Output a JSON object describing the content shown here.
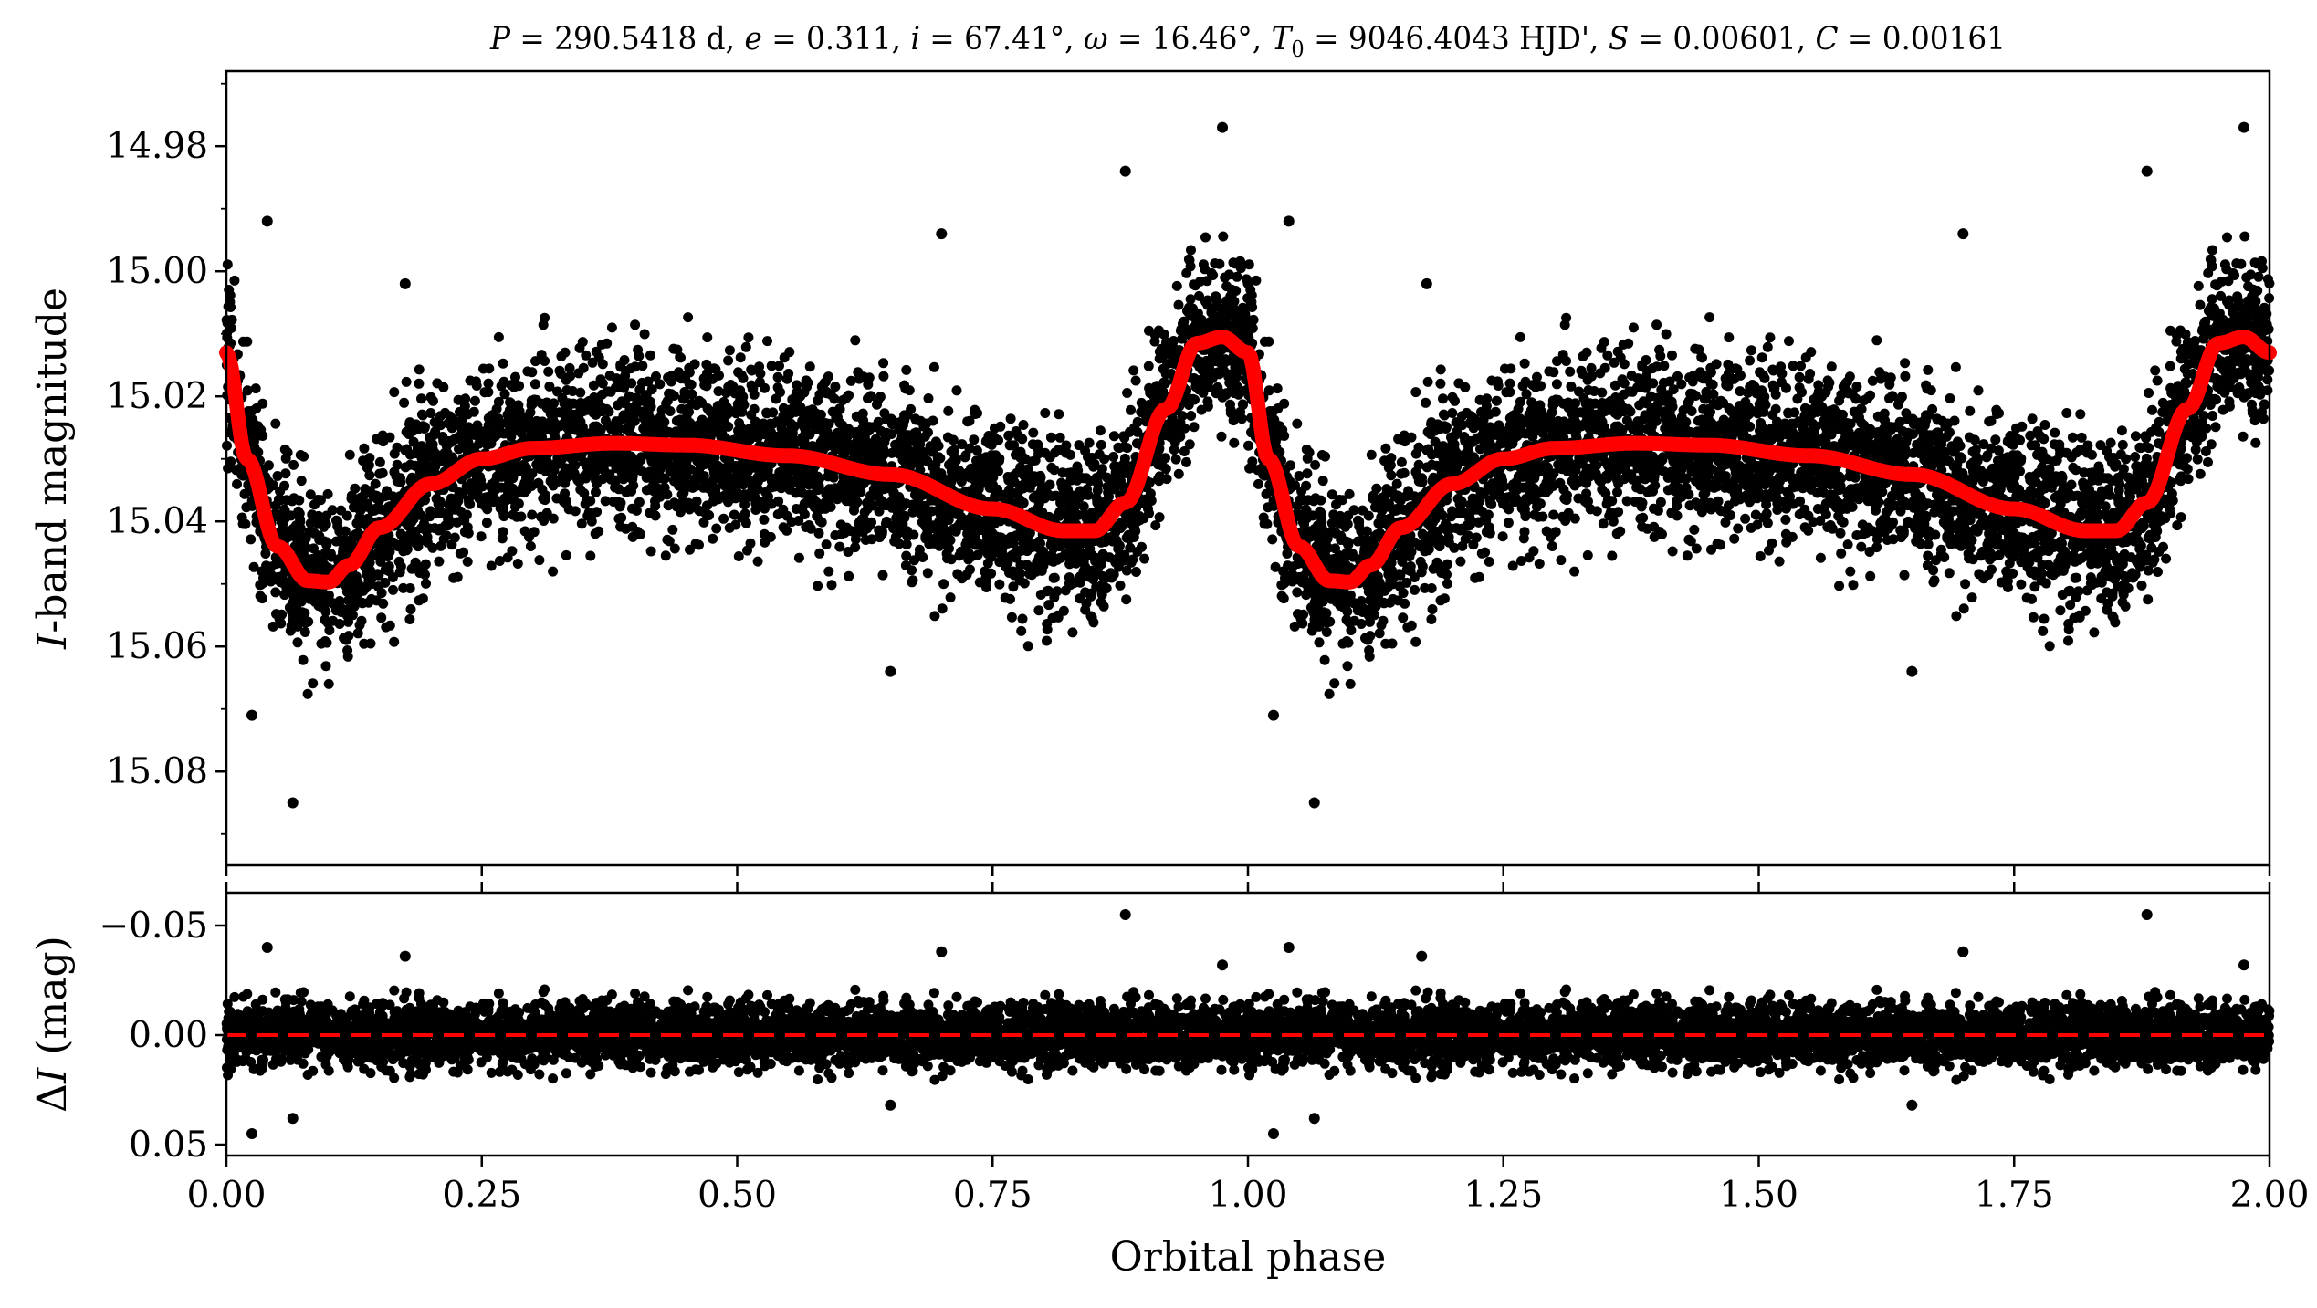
{
  "chart_data": [
    {
      "type": "scatter",
      "title": "P = 290.5418 d, e = 0.311, i = 67.41°, ω = 16.46°, T₀ = 9046.4043 HJD', S = 0.00601, C = 0.00161",
      "xlabel": "",
      "ylabel": "I-band magnitude",
      "xlim": [
        0.0,
        2.0
      ],
      "ylim": [
        15.095,
        14.968
      ],
      "y_inverted": true,
      "yticks": [
        "14.98",
        "15.00",
        "15.02",
        "15.04",
        "15.06",
        "15.08"
      ],
      "grid": false,
      "legend": "none",
      "colors": {
        "points": "#000000",
        "model": "#ff0000"
      },
      "model_curve": {
        "x": [
          0.0,
          0.02,
          0.05,
          0.08,
          0.1,
          0.12,
          0.15,
          0.2,
          0.25,
          0.3,
          0.38,
          0.45,
          0.55,
          0.65,
          0.75,
          0.82,
          0.85,
          0.88,
          0.92,
          0.95,
          0.975,
          1.0,
          1.02,
          1.05,
          1.08,
          1.1,
          1.12,
          1.15,
          1.2,
          1.25,
          1.3,
          1.38,
          1.45,
          1.55,
          1.65,
          1.75,
          1.82,
          1.85,
          1.88,
          1.92,
          1.95,
          1.975,
          2.0
        ],
        "y": [
          15.013,
          15.03,
          15.044,
          15.0495,
          15.0497,
          15.047,
          15.041,
          15.034,
          15.03,
          15.0283,
          15.0275,
          15.0278,
          15.0295,
          15.0325,
          15.038,
          15.0415,
          15.0415,
          15.037,
          15.022,
          15.0115,
          15.0105,
          15.013,
          15.03,
          15.044,
          15.0495,
          15.0497,
          15.047,
          15.041,
          15.034,
          15.03,
          15.0283,
          15.0275,
          15.0278,
          15.0295,
          15.0325,
          15.038,
          15.0415,
          15.0415,
          15.037,
          15.022,
          15.0115,
          15.0105,
          15.013
        ]
      },
      "points": {
        "description_of_data": "phased I-band photometry, residual scatter about model ~0.008 mag",
        "outliers": [
          {
            "x": 0.04,
            "y": 14.992
          },
          {
            "x": 0.025,
            "y": 15.071
          },
          {
            "x": 0.065,
            "y": 15.085
          },
          {
            "x": 0.175,
            "y": 15.002
          },
          {
            "x": 0.7,
            "y": 14.994
          },
          {
            "x": 0.88,
            "y": 14.984
          },
          {
            "x": 0.975,
            "y": 14.977
          },
          {
            "x": 0.65,
            "y": 15.064
          },
          {
            "x": 1.04,
            "y": 14.992
          },
          {
            "x": 1.025,
            "y": 15.071
          },
          {
            "x": 1.065,
            "y": 15.085
          },
          {
            "x": 1.175,
            "y": 15.002
          },
          {
            "x": 1.7,
            "y": 14.994
          },
          {
            "x": 1.88,
            "y": 14.984
          },
          {
            "x": 1.975,
            "y": 14.977
          },
          {
            "x": 1.65,
            "y": 15.064
          }
        ]
      }
    },
    {
      "type": "scatter",
      "title": "",
      "xlabel": "Orbital phase",
      "ylabel": "ΔI (mag)",
      "xlim": [
        0.0,
        2.0
      ],
      "ylim": [
        0.055,
        -0.065
      ],
      "y_inverted": true,
      "yticks": [
        "−0.05",
        "0.00",
        "0.05"
      ],
      "xticks": [
        "0.00",
        "0.25",
        "0.50",
        "0.75",
        "1.00",
        "1.25",
        "1.50",
        "1.75",
        "2.00"
      ],
      "grid": false,
      "legend": "none",
      "reference_line": {
        "y": 0.0,
        "style": "dashed",
        "color": "#ff0000"
      },
      "points": {
        "outliers": [
          {
            "x": 0.88,
            "y": -0.055
          },
          {
            "x": 1.88,
            "y": -0.055
          },
          {
            "x": 0.975,
            "y": -0.032
          },
          {
            "x": 1.975,
            "y": -0.032
          },
          {
            "x": 0.04,
            "y": -0.04
          },
          {
            "x": 1.04,
            "y": -0.04
          },
          {
            "x": 0.175,
            "y": -0.036
          },
          {
            "x": 1.17,
            "y": -0.036
          },
          {
            "x": 0.7,
            "y": -0.038
          },
          {
            "x": 1.7,
            "y": -0.038
          },
          {
            "x": 0.025,
            "y": 0.045
          },
          {
            "x": 1.025,
            "y": 0.045
          },
          {
            "x": 0.065,
            "y": 0.038
          },
          {
            "x": 1.065,
            "y": 0.038
          },
          {
            "x": 0.65,
            "y": 0.032
          },
          {
            "x": 1.65,
            "y": 0.032
          }
        ]
      }
    }
  ]
}
